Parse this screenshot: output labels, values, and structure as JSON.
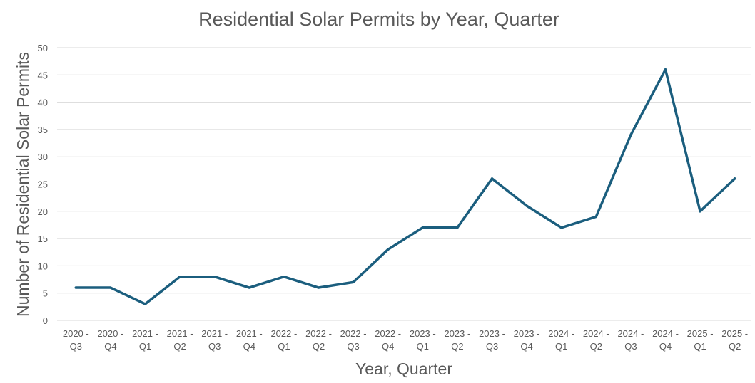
{
  "chart_data": {
    "type": "line",
    "title": "Residential Solar Permits by Year, Quarter",
    "xlabel": "Year, Quarter",
    "ylabel": "Number of Residential Solar Permits",
    "ylim": [
      0,
      50
    ],
    "yticks": [
      0,
      5,
      10,
      15,
      20,
      25,
      30,
      35,
      40,
      45,
      50
    ],
    "grid": true,
    "legend": "none",
    "line_color": "#1b5e7e",
    "categories": [
      [
        "2020 -",
        "Q3"
      ],
      [
        "2020 -",
        "Q4"
      ],
      [
        "2021 -",
        "Q1"
      ],
      [
        "2021 -",
        "Q2"
      ],
      [
        "2021 -",
        "Q3"
      ],
      [
        "2021 -",
        "Q4"
      ],
      [
        "2022 -",
        "Q1"
      ],
      [
        "2022 -",
        "Q2"
      ],
      [
        "2022 -",
        "Q3"
      ],
      [
        "2022 -",
        "Q4"
      ],
      [
        "2023 -",
        "Q1"
      ],
      [
        "2023 -",
        "Q2"
      ],
      [
        "2023 -",
        "Q3"
      ],
      [
        "2023 -",
        "Q4"
      ],
      [
        "2024 -",
        "Q1"
      ],
      [
        "2024 -",
        "Q2"
      ],
      [
        "2024 -",
        "Q3"
      ],
      [
        "2024 -",
        "Q4"
      ],
      [
        "2025 -",
        "Q1"
      ],
      [
        "2025 -",
        "Q2"
      ]
    ],
    "series": [
      {
        "name": "Residential Solar Permits",
        "values": [
          6,
          6,
          3,
          8,
          8,
          6,
          8,
          6,
          7,
          13,
          17,
          17,
          26,
          21,
          17,
          19,
          34,
          46,
          20,
          26
        ]
      }
    ]
  }
}
